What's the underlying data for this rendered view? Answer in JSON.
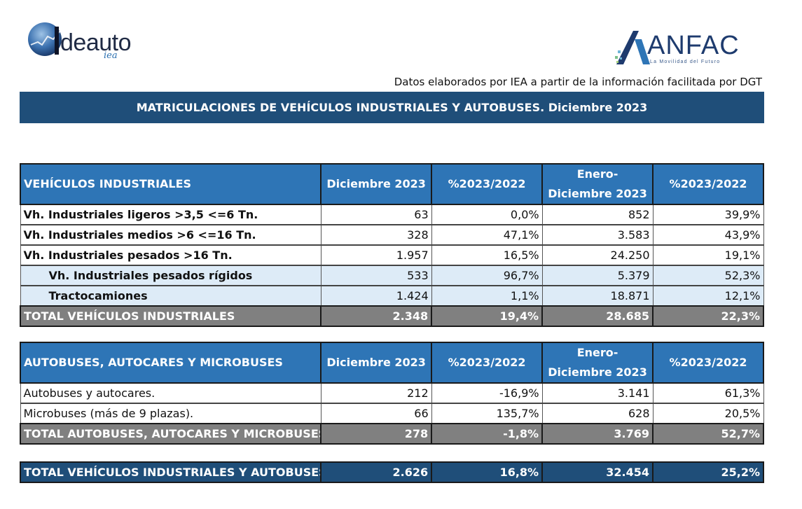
{
  "logos": {
    "ideauto": {
      "brand": "deauto",
      "sub": "iea"
    },
    "anfac": {
      "name": "ANFAC",
      "tagline": "La Movilidad del Futuro"
    }
  },
  "source_note": "Datos elaborados por IEA a partir de la información facilitada por DGT",
  "banner_title": "MATRICULACIONES DE VEHÍCULOS INDUSTRIALES Y AUTOBUSES.  Diciembre 2023",
  "industrial": {
    "headers": [
      "VEHÍCULOS INDUSTRIALES",
      "Diciembre 2023",
      "%2023/2022",
      "Enero-Diciembre 2023",
      "%2023/2022"
    ],
    "rows": [
      {
        "label": "Vh. Industriales ligeros >3,5 <=6 Tn.",
        "dic": "63",
        "pct1": "0,0%",
        "ene_dic": "852",
        "pct2": "39,9%"
      },
      {
        "label": "Vh. Industriales medios >6  <=16 Tn.",
        "dic": "328",
        "pct1": "47,1%",
        "ene_dic": "3.583",
        "pct2": "43,9%"
      },
      {
        "label": "Vh. Industriales  pesados >16 Tn.",
        "dic": "1.957",
        "pct1": "16,5%",
        "ene_dic": "24.250",
        "pct2": "19,1%"
      },
      {
        "label": "Vh. Industriales pesados rígidos",
        "dic": "533",
        "pct1": "96,7%",
        "ene_dic": "5.379",
        "pct2": "52,3%"
      },
      {
        "label": "Tractocamiones",
        "dic": "1.424",
        "pct1": "1,1%",
        "ene_dic": "18.871",
        "pct2": "12,1%"
      }
    ],
    "total": {
      "label": "TOTAL VEHÍCULOS INDUSTRIALES",
      "dic": "2.348",
      "pct1": "19,4%",
      "ene_dic": "28.685",
      "pct2": "22,3%"
    }
  },
  "buses": {
    "headers": [
      "AUTOBUSES, AUTOCARES Y MICROBUSES",
      "Diciembre 2023",
      "%2023/2022",
      "Enero-Diciembre 2023",
      "%2023/2022"
    ],
    "rows": [
      {
        "label": "Autobuses y autocares.",
        "dic": "212",
        "pct1": "-16,9%",
        "ene_dic": "3.141",
        "pct2": "61,3%"
      },
      {
        "label": "Microbuses (más de 9 plazas).",
        "dic": "66",
        "pct1": "135,7%",
        "ene_dic": "628",
        "pct2": "20,5%"
      }
    ],
    "total": {
      "label": "TOTAL AUTOBUSES, AUTOCARES Y MICROBUSES",
      "dic": "278",
      "pct1": "-1,8%",
      "ene_dic": "3.769",
      "pct2": "52,7%"
    }
  },
  "grand_total": {
    "label": "TOTAL VEHÍCULOS INDUSTRIALES Y AUTOBUSES",
    "dic": "2.626",
    "pct1": "16,8%",
    "ene_dic": "32.454",
    "pct2": "25,2%"
  },
  "colors": {
    "banner": "#1f4e79",
    "header": "#2e75b6",
    "total": "#808080",
    "subrow": "#ddebf7"
  }
}
